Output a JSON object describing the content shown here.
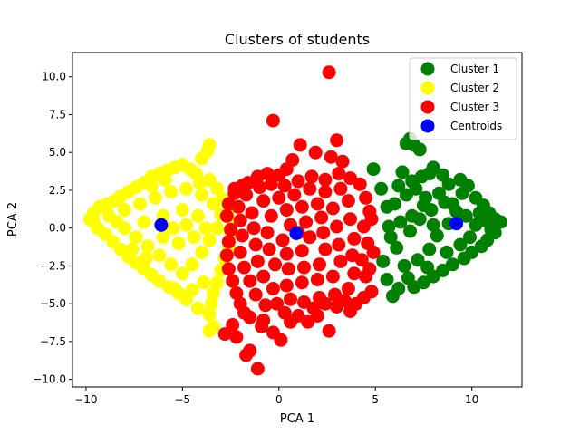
{
  "chart_data": {
    "type": "scatter",
    "title": "Clusters of students",
    "xlabel": "PCA 1",
    "ylabel": "PCA 2",
    "xlim": [
      -10.7,
      12.6
    ],
    "ylim": [
      -10.5,
      11.6
    ],
    "xticks": [
      -10,
      -5,
      0,
      5,
      10
    ],
    "xtick_labels": [
      "−10",
      "−5",
      "0",
      "5",
      "10"
    ],
    "yticks": [
      -10.0,
      -7.5,
      -5.0,
      -2.5,
      0.0,
      2.5,
      5.0,
      7.5,
      10.0
    ],
    "ytick_labels": [
      "−10.0",
      "−7.5",
      "−5.0",
      "−2.5",
      "0.0",
      "2.5",
      "5.0",
      "7.5",
      "10.0"
    ],
    "grid": false,
    "legend_placement": "top-right",
    "series": [
      {
        "name": "Cluster 1",
        "color": "#008000",
        "points": [
          [
            4.9,
            3.9
          ],
          [
            5.3,
            2.6
          ],
          [
            5.6,
            1.4
          ],
          [
            5.8,
            -0.6
          ],
          [
            5.4,
            -2.2
          ],
          [
            5.6,
            -3.4
          ],
          [
            5.9,
            -4.5
          ],
          [
            6.2,
            -4.0
          ],
          [
            6.6,
            5.6
          ],
          [
            6.8,
            5.9
          ],
          [
            7.0,
            5.5
          ],
          [
            7.3,
            5.2
          ],
          [
            6.4,
            3.7
          ],
          [
            6.9,
            3.1
          ],
          [
            7.4,
            3.4
          ],
          [
            7.8,
            3.6
          ],
          [
            8.0,
            4.0
          ],
          [
            8.5,
            3.5
          ],
          [
            8.8,
            2.9
          ],
          [
            9.4,
            3.2
          ],
          [
            9.8,
            2.8
          ],
          [
            10.2,
            2.0
          ],
          [
            10.6,
            1.5
          ],
          [
            10.9,
            1.0
          ],
          [
            11.2,
            0.6
          ],
          [
            11.5,
            0.4
          ],
          [
            11.2,
            -0.3
          ],
          [
            10.8,
            -0.8
          ],
          [
            10.5,
            -1.2
          ],
          [
            10.0,
            -1.6
          ],
          [
            9.6,
            -2.0
          ],
          [
            9.0,
            -2.4
          ],
          [
            8.5,
            -2.8
          ],
          [
            8.0,
            -3.2
          ],
          [
            7.5,
            -3.6
          ],
          [
            7.0,
            -3.9
          ],
          [
            6.7,
            -3.3
          ],
          [
            7.2,
            -2.1
          ],
          [
            7.8,
            -1.4
          ],
          [
            8.2,
            -0.5
          ],
          [
            8.8,
            0.3
          ],
          [
            9.2,
            1.1
          ],
          [
            8.6,
            1.7
          ],
          [
            7.9,
            1.2
          ],
          [
            7.3,
            0.6
          ],
          [
            6.8,
            -0.2
          ],
          [
            6.3,
            0.4
          ],
          [
            6.0,
            1.6
          ],
          [
            6.6,
            2.2
          ],
          [
            7.1,
            2.6
          ],
          [
            7.6,
            2.0
          ],
          [
            8.3,
            2.3
          ],
          [
            9.0,
            1.6
          ],
          [
            9.7,
            0.8
          ],
          [
            10.2,
            0.2
          ],
          [
            10.7,
            0.5
          ],
          [
            9.9,
            -0.6
          ],
          [
            9.4,
            -1.1
          ],
          [
            8.7,
            -1.6
          ],
          [
            7.7,
            -2.6
          ],
          [
            6.5,
            -2.5
          ],
          [
            6.1,
            -1.3
          ],
          [
            5.7,
            0.1
          ],
          [
            6.9,
            0.8
          ],
          [
            8.0,
            0.2
          ],
          [
            9.5,
            2.3
          ],
          [
            10.4,
            1.0
          ],
          [
            11.0,
            -0.1
          ],
          [
            7.5,
            1.5
          ],
          [
            6.2,
            2.8
          ]
        ]
      },
      {
        "name": "Cluster 2",
        "color": "#ffff00",
        "points": [
          [
            -9.8,
            0.6
          ],
          [
            -9.6,
            1.0
          ],
          [
            -9.3,
            1.4
          ],
          [
            -8.9,
            1.6
          ],
          [
            -8.5,
            1.8
          ],
          [
            -8.2,
            2.1
          ],
          [
            -7.8,
            2.4
          ],
          [
            -7.4,
            2.7
          ],
          [
            -7.0,
            3.0
          ],
          [
            -6.6,
            3.4
          ],
          [
            -6.2,
            3.6
          ],
          [
            -5.8,
            3.8
          ],
          [
            -5.4,
            4.0
          ],
          [
            -5.0,
            4.2
          ],
          [
            -4.6,
            3.9
          ],
          [
            -4.3,
            3.6
          ],
          [
            -3.7,
            5.1
          ],
          [
            -3.6,
            5.5
          ],
          [
            -4.0,
            4.6
          ],
          [
            -3.6,
            3.2
          ],
          [
            -3.2,
            2.6
          ],
          [
            -2.9,
            1.9
          ],
          [
            -2.6,
            1.2
          ],
          [
            -2.4,
            0.4
          ],
          [
            -2.5,
            -0.4
          ],
          [
            -2.6,
            -1.2
          ],
          [
            -2.8,
            -2.0
          ],
          [
            -3.0,
            -2.8
          ],
          [
            -3.2,
            -3.6
          ],
          [
            -3.4,
            -4.3
          ],
          [
            -3.5,
            -5.0
          ],
          [
            -3.6,
            -5.7
          ],
          [
            -3.4,
            -6.5
          ],
          [
            -3.6,
            -6.8
          ],
          [
            -4.2,
            -5.3
          ],
          [
            -4.8,
            -4.7
          ],
          [
            -5.2,
            -4.3
          ],
          [
            -5.7,
            -3.9
          ],
          [
            -6.2,
            -3.5
          ],
          [
            -6.6,
            -3.1
          ],
          [
            -7.0,
            -2.7
          ],
          [
            -7.4,
            -2.3
          ],
          [
            -7.8,
            -1.9
          ],
          [
            -8.2,
            -1.4
          ],
          [
            -8.6,
            -0.9
          ],
          [
            -9.0,
            -0.4
          ],
          [
            -9.4,
            0.0
          ],
          [
            -9.6,
            0.4
          ],
          [
            -8.8,
            0.8
          ],
          [
            -8.0,
            1.2
          ],
          [
            -7.2,
            1.6
          ],
          [
            -6.4,
            2.0
          ],
          [
            -5.6,
            2.4
          ],
          [
            -4.8,
            2.6
          ],
          [
            -4.0,
            2.2
          ],
          [
            -3.4,
            1.6
          ],
          [
            -3.0,
            0.9
          ],
          [
            -3.2,
            0.0
          ],
          [
            -3.6,
            -0.8
          ],
          [
            -4.0,
            -1.6
          ],
          [
            -4.5,
            -2.4
          ],
          [
            -5.0,
            -3.0
          ],
          [
            -5.6,
            -2.4
          ],
          [
            -6.2,
            -1.8
          ],
          [
            -6.8,
            -1.2
          ],
          [
            -7.4,
            -0.6
          ],
          [
            -8.0,
            0.0
          ],
          [
            -7.0,
            0.4
          ],
          [
            -6.0,
            0.8
          ],
          [
            -5.0,
            1.2
          ],
          [
            -4.2,
            0.8
          ],
          [
            -3.8,
            0.0
          ],
          [
            -4.4,
            -0.6
          ],
          [
            -5.2,
            -1.0
          ],
          [
            -6.0,
            -0.6
          ],
          [
            -5.5,
            0.0
          ],
          [
            -4.8,
            0.2
          ],
          [
            -6.6,
            2.8
          ],
          [
            -5.9,
            3.2
          ],
          [
            -4.1,
            3.0
          ],
          [
            -5.4,
            -4.0
          ],
          [
            -4.5,
            -4.1
          ],
          [
            -3.9,
            -3.6
          ],
          [
            -7.6,
            -1.4
          ],
          [
            -8.4,
            0.4
          ],
          [
            -6.9,
            -2.0
          ]
        ]
      },
      {
        "name": "Cluster 3",
        "color": "#ff0000",
        "points": [
          [
            2.6,
            10.3
          ],
          [
            -0.3,
            7.1
          ],
          [
            3.0,
            5.8
          ],
          [
            1.1,
            5.5
          ],
          [
            1.9,
            5.0
          ],
          [
            2.7,
            4.7
          ],
          [
            3.3,
            4.4
          ],
          [
            0.7,
            4.5
          ],
          [
            0.4,
            3.9
          ],
          [
            0.0,
            3.5
          ],
          [
            -0.6,
            3.6
          ],
          [
            -1.1,
            3.4
          ],
          [
            -1.6,
            3.0
          ],
          [
            -2.3,
            2.3
          ],
          [
            -2.6,
            1.6
          ],
          [
            -2.7,
            0.8
          ],
          [
            -2.5,
            -0.1
          ],
          [
            -2.6,
            -0.9
          ],
          [
            -2.7,
            -1.8
          ],
          [
            -2.6,
            -2.7
          ],
          [
            -2.4,
            -3.5
          ],
          [
            -2.2,
            -4.3
          ],
          [
            -2.0,
            -5.0
          ],
          [
            -1.8,
            -5.6
          ],
          [
            -2.4,
            -6.4
          ],
          [
            -2.8,
            -7.0
          ],
          [
            -2.2,
            -7.2
          ],
          [
            -1.7,
            -8.4
          ],
          [
            -1.5,
            -8.1
          ],
          [
            -1.1,
            -9.3
          ],
          [
            -0.8,
            -6.1
          ],
          [
            -0.3,
            -6.9
          ],
          [
            0.1,
            -7.4
          ],
          [
            0.6,
            -6.2
          ],
          [
            1.0,
            -5.8
          ],
          [
            1.5,
            -6.2
          ],
          [
            2.0,
            -5.8
          ],
          [
            2.6,
            -6.8
          ],
          [
            3.0,
            -5.2
          ],
          [
            3.7,
            -5.5
          ],
          [
            4.0,
            -5.0
          ],
          [
            4.4,
            -4.6
          ],
          [
            4.8,
            -4.2
          ],
          [
            4.5,
            -3.2
          ],
          [
            4.3,
            -2.1
          ],
          [
            4.6,
            -1.0
          ],
          [
            4.4,
            0.1
          ],
          [
            4.7,
            1.1
          ],
          [
            4.5,
            2.0
          ],
          [
            4.2,
            2.9
          ],
          [
            3.7,
            3.3
          ],
          [
            3.1,
            3.6
          ],
          [
            2.4,
            3.2
          ],
          [
            1.7,
            3.4
          ],
          [
            1.0,
            3.1
          ],
          [
            0.3,
            2.8
          ],
          [
            -0.4,
            2.9
          ],
          [
            -1.0,
            2.7
          ],
          [
            -1.7,
            2.2
          ],
          [
            -2.1,
            1.4
          ],
          [
            -2.0,
            0.5
          ],
          [
            -1.9,
            -0.5
          ],
          [
            -2.0,
            -1.6
          ],
          [
            -1.8,
            -2.6
          ],
          [
            -1.5,
            -3.5
          ],
          [
            -1.2,
            -4.4
          ],
          [
            -0.7,
            -5.1
          ],
          [
            -0.1,
            -5.0
          ],
          [
            0.6,
            -4.7
          ],
          [
            1.3,
            -4.9
          ],
          [
            2.1,
            -4.6
          ],
          [
            2.9,
            -4.4
          ],
          [
            3.6,
            -4.0
          ],
          [
            3.9,
            -3.0
          ],
          [
            3.8,
            -1.8
          ],
          [
            3.9,
            -0.7
          ],
          [
            3.7,
            0.6
          ],
          [
            3.6,
            1.8
          ],
          [
            3.2,
            2.6
          ],
          [
            2.4,
            2.4
          ],
          [
            1.6,
            2.6
          ],
          [
            0.8,
            2.2
          ],
          [
            0.0,
            2.0
          ],
          [
            -0.8,
            1.8
          ],
          [
            -1.4,
            1.0
          ],
          [
            -1.3,
            0.0
          ],
          [
            -1.2,
            -1.1
          ],
          [
            -1.1,
            -2.2
          ],
          [
            -0.8,
            -3.2
          ],
          [
            -0.3,
            -4.0
          ],
          [
            0.4,
            -3.8
          ],
          [
            1.2,
            -3.6
          ],
          [
            2.0,
            -3.4
          ],
          [
            2.8,
            -3.2
          ],
          [
            3.2,
            -2.2
          ],
          [
            3.1,
            -1.1
          ],
          [
            3.0,
            0.1
          ],
          [
            2.8,
            1.3
          ],
          [
            2.0,
            1.6
          ],
          [
            1.2,
            1.4
          ],
          [
            0.4,
            1.2
          ],
          [
            -0.4,
            0.8
          ],
          [
            -0.6,
            -0.3
          ],
          [
            -0.5,
            -1.4
          ],
          [
            -0.2,
            -2.4
          ],
          [
            0.5,
            -2.7
          ],
          [
            1.3,
            -2.6
          ],
          [
            2.1,
            -2.4
          ],
          [
            2.4,
            -1.4
          ],
          [
            2.3,
            -0.3
          ],
          [
            2.2,
            0.7
          ],
          [
            1.4,
            0.4
          ],
          [
            0.6,
            0.2
          ],
          [
            0.2,
            -0.8
          ],
          [
            0.4,
            -1.7
          ],
          [
            1.2,
            -1.5
          ],
          [
            1.6,
            -0.6
          ],
          [
            1.0,
            -0.3
          ],
          [
            -1.5,
            -5.9
          ],
          [
            -0.9,
            -6.5
          ],
          [
            0.3,
            -5.6
          ],
          [
            1.8,
            -5.3
          ],
          [
            2.4,
            -5.0
          ],
          [
            3.4,
            -4.8
          ],
          [
            -2.3,
            2.6
          ],
          [
            -1.9,
            2.8
          ],
          [
            4.8,
            0.6
          ],
          [
            4.9,
            -1.6
          ],
          [
            4.7,
            -2.7
          ]
        ]
      },
      {
        "name": "Centroids",
        "color": "#0000ff",
        "points": [
          [
            -6.1,
            0.2
          ],
          [
            0.9,
            -0.35
          ],
          [
            9.2,
            0.3
          ]
        ]
      }
    ]
  }
}
